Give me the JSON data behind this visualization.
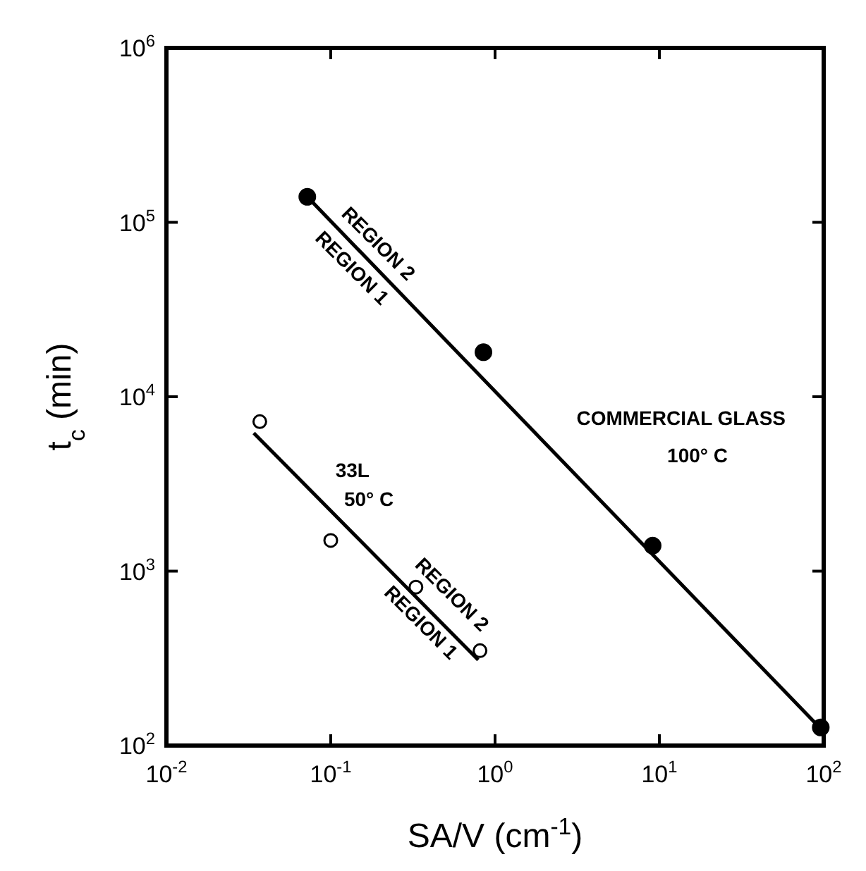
{
  "chart_data": {
    "type": "scatter",
    "xlabel": "SA/V (cm$^{-1}$)",
    "ylabel": "t$_{c}$ (min)",
    "log": "xy",
    "grid": false,
    "xlim": [
      0.01,
      100
    ],
    "ylim": [
      100,
      1000000
    ],
    "xticks": [
      {
        "value": 0.01,
        "label": "10$^{-2}$"
      },
      {
        "value": 0.1,
        "label": "10$^{-1}$"
      },
      {
        "value": 1,
        "label": "10$^{0}$"
      },
      {
        "value": 10,
        "label": "10$^{1}$"
      },
      {
        "value": 100,
        "label": "10$^{2}$"
      }
    ],
    "yticks": [
      {
        "value": 100,
        "label": "10$^{2}$"
      },
      {
        "value": 1000,
        "label": "10$^{3}$"
      },
      {
        "value": 10000,
        "label": "10$^{4}$"
      },
      {
        "value": 100000,
        "label": "10$^{5}$"
      },
      {
        "value": 1000000,
        "label": "10$^{6}$"
      }
    ],
    "series": [
      {
        "color": "#000000",
        "marker": "circle",
        "x": [
          0.072,
          0.85,
          9.1,
          96
        ],
        "values": [
          140000,
          18000,
          1400,
          127
        ]
      },
      {
        "type": "line",
        "color": "#000000",
        "marker": "none",
        "x": [
          0.072,
          100
        ],
        "values": [
          140000,
          120
        ]
      },
      {
        "color": "#000000",
        "marker": "circle",
        "x": [
          0.037,
          0.1,
          0.33,
          0.81
        ],
        "values": [
          7200,
          1500,
          810,
          350
        ]
      },
      {
        "type": "line",
        "color": "#000000",
        "marker": "none",
        "x": [
          0.034,
          0.79
        ],
        "values": [
          6200,
          310
        ]
      }
    ],
    "annotations": [
      "REGION 2",
      "REGION 1",
      "COMMERCIAL GLASS",
      "100° C",
      "33L",
      "50° C",
      "REGION 2",
      "REGION 1"
    ]
  }
}
